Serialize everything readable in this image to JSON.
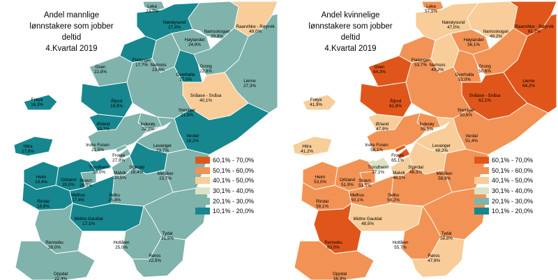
{
  "legend": {
    "classes": [
      {
        "label": "60,1% - 70,0%",
        "color": "#E0561A"
      },
      {
        "label": "50,1% - 60,0%",
        "color": "#F29355"
      },
      {
        "label": "40,1% - 50,0%",
        "color": "#F8CD99"
      },
      {
        "label": "30,1% - 40,0%",
        "color": "#DBE3C6"
      },
      {
        "label": "20,1% - 30,0%",
        "color": "#7FB3AC"
      },
      {
        "label": "10,1% - 20,0%",
        "color": "#16878F"
      }
    ]
  },
  "maps": [
    {
      "title": [
        "Andel mannlige",
        "lønnstakere som jobber",
        "deltid",
        "4.Kvartal 2019"
      ],
      "municipalities": [
        {
          "name": "Leka",
          "value": "23,7%"
        },
        {
          "name": "Nærøysund",
          "value": "17,4%"
        },
        {
          "name": "Namsskogan",
          "value": "29,8%"
        },
        {
          "name": "Raarvihke - Røyrvik",
          "value": "49,0%"
        },
        {
          "name": "Høylandet",
          "value": "24,9%"
        },
        {
          "name": "Flatanger",
          "value": "17,?%"
        },
        {
          "name": "Namsos",
          "value": "23,6%"
        },
        {
          "name": "Grong",
          "value": "22,8%"
        },
        {
          "name": "Osen",
          "value": "22,8%"
        },
        {
          "name": "Overhalla",
          "value": "17,0%"
        },
        {
          "name": "Lierne",
          "value": "27,3%"
        },
        {
          "name": "Åfjord",
          "value": "19,9%"
        },
        {
          "name": "Frøya",
          "value": "16,3%"
        },
        {
          "name": "Snåase - Snåsa",
          "value": "40,1%"
        },
        {
          "name": "Steinkjer",
          "value": "21,6%"
        },
        {
          "name": "Ørland",
          "value": "15,?%"
        },
        {
          "name": "Inderøy",
          "value": "22,2%"
        },
        {
          "name": "Hitra",
          "value": "17,8%"
        },
        {
          "name": "Verdal",
          "value": "18,2%"
        },
        {
          "name": "Indre Fosen",
          "value": "21,5%"
        },
        {
          "name": "Levanger",
          "value": "23,7%"
        },
        {
          "name": "Frosta",
          "value": "27,9%"
        },
        {
          "name": "Trondheim",
          "value": "19,0%"
        },
        {
          "name": "Stjørdal",
          "value": "18,4%"
        },
        {
          "name": "Malvik",
          "value": "20,5%"
        },
        {
          "name": "Heim",
          "value": "19,4%"
        },
        {
          "name": "Orkland",
          "value": "20,0%"
        },
        {
          "name": "Skaun",
          "value": "26,0%"
        },
        {
          "name": "Meråker",
          "value": "23,7%"
        },
        {
          "name": "Melhus",
          "value": "17,4%"
        },
        {
          "name": "Rindal",
          "value": "18,8%"
        },
        {
          "name": "Selbu",
          "value": "25,4%"
        },
        {
          "name": "Midtre Gauldal",
          "value": "17,1%"
        },
        {
          "name": "Tydal",
          "value": "21,5%"
        },
        {
          "name": "Rennebu",
          "value": "28,0%"
        },
        {
          "name": "Holtålen",
          "value": "25,0%"
        },
        {
          "name": "Oppdal",
          "value": "22,4%"
        },
        {
          "name": "Røros",
          "value": "22,5%"
        }
      ]
    },
    {
      "title": [
        "Andel kvinnelige",
        "lønnstakere som jobber",
        "deltid",
        "4.Kvartal 2019"
      ],
      "municipalities": [
        {
          "name": "Leka",
          "value": "57,1%"
        },
        {
          "name": "Nærøysund",
          "value": "47,0%"
        },
        {
          "name": "Namsskogan",
          "value": "49,2%"
        },
        {
          "name": "Raarvihke - Røyrvik",
          "value": "61,7%"
        },
        {
          "name": "Høylandet",
          "value": "56,1%"
        },
        {
          "name": "Flatanger",
          "value": "53,7%"
        },
        {
          "name": "Namsos",
          "value": "49,2%"
        },
        {
          "name": "Grong",
          "value": "50,6%"
        },
        {
          "name": "Osen",
          "value": "64,3%"
        },
        {
          "name": "Overhalla",
          "value": "52,0%"
        },
        {
          "name": "Lierne",
          "value": "64,2%"
        },
        {
          "name": "Åfjord",
          "value": "61,8%"
        },
        {
          "name": "Frøya",
          "value": "41,9%"
        },
        {
          "name": "Snåase - Snåsa",
          "value": "62,1%"
        },
        {
          "name": "Steinkjer",
          "value": "50,6%"
        },
        {
          "name": "Ørland",
          "value": "47,9%"
        },
        {
          "name": "Inderøy",
          "value": "55,5%"
        },
        {
          "name": "Hitra",
          "value": "41,2%"
        },
        {
          "name": "Verdal",
          "value": "51,4%"
        },
        {
          "name": "Indre Fosen",
          "value": "58,1%"
        },
        {
          "name": "Levanger",
          "value": "48,2%"
        },
        {
          "name": "Frosta",
          "value": "65,1%"
        },
        {
          "name": "Trondheim",
          "value": "37,1%"
        },
        {
          "name": "Stjørdal",
          "value": "46,3%"
        },
        {
          "name": "Malvik",
          "value": "46,1%"
        },
        {
          "name": "Heim",
          "value": "53,0%"
        },
        {
          "name": "Orkland",
          "value": "51,9%"
        },
        {
          "name": "Skaun",
          "value": "51,5%"
        },
        {
          "name": "Meråker",
          "value": "58,9%"
        },
        {
          "name": "Melhus",
          "value": "50,1%"
        },
        {
          "name": "Rindal",
          "value": "58,1%"
        },
        {
          "name": "Selbu",
          "value": "58,2%"
        },
        {
          "name": "Midtre Gauldal",
          "value": "48,5%"
        },
        {
          "name": "Tydal",
          "value": "58,8%"
        },
        {
          "name": "Rennebu",
          "value": "63,0%"
        },
        {
          "name": "Holtålen",
          "value": "55,7%"
        },
        {
          "name": "Oppdal",
          "value": "56,9%"
        },
        {
          "name": "Røros",
          "value": "47,9%"
        }
      ]
    }
  ]
}
